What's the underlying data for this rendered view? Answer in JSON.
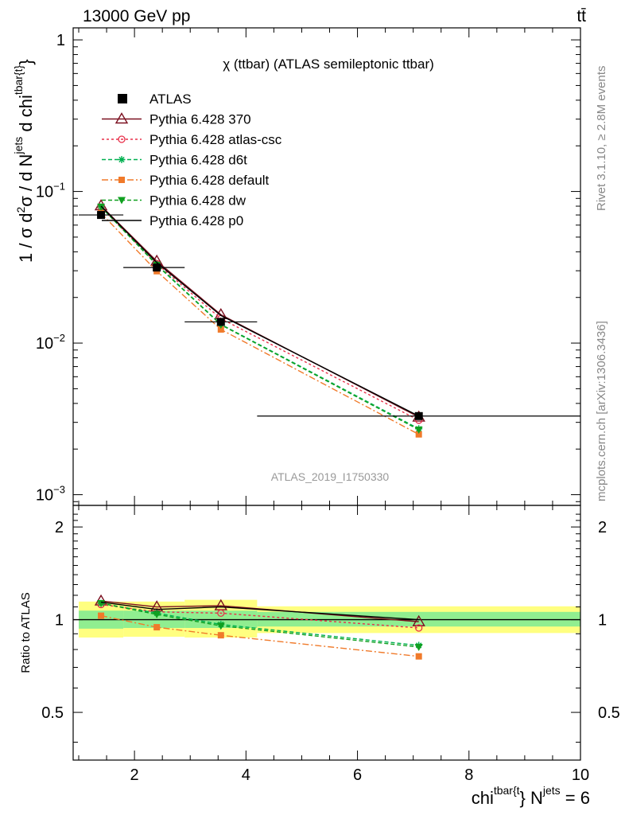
{
  "header": {
    "energy_label": "13000 GeV pp",
    "process_label": "tt̄"
  },
  "side_text": {
    "rivet": "Rivet 3.1.10, ≥ 2.8M events",
    "mcplots": "mcplots.cern.ch [arXiv:1306.3436]"
  },
  "chart_data": [
    {
      "type": "line",
      "panel": "main",
      "title": "χ (ttbar) (ATLAS semileptonic ttbar)",
      "ylabel": "1 / σ d²σ / d N^jets d chi^tbar{t}",
      "watermark": "ATLAS_2019_I1750330",
      "yscale": "log",
      "xlim": [
        0.9,
        10.0
      ],
      "ylim": [
        0.00085,
        1.2
      ],
      "ytick_labels": [
        {
          "value": 1,
          "base": "1",
          "exp": ""
        },
        {
          "value": 0.1,
          "base": "10",
          "exp": "−1"
        },
        {
          "value": 0.01,
          "base": "10",
          "exp": "−2"
        },
        {
          "value": 0.001,
          "base": "10",
          "exp": "−3"
        }
      ],
      "legend_position": "top-left",
      "series": [
        {
          "name": "ATLAS",
          "color": "#000000",
          "marker": "square",
          "dash": "none",
          "x": [
            1.4,
            2.4,
            3.55,
            7.1
          ],
          "y": [
            0.07,
            0.0315,
            0.0138,
            0.0033
          ],
          "xerr": [
            [
              1.0,
              1.8
            ],
            [
              1.8,
              2.9
            ],
            [
              2.9,
              4.2
            ],
            [
              4.2,
              10.0
            ]
          ]
        },
        {
          "name": "Pythia 6.428 370",
          "color": "#7b1020",
          "marker": "triangle-open",
          "dash": "none",
          "x": [
            1.4,
            2.4,
            3.55,
            7.1
          ],
          "y": [
            0.0805,
            0.0347,
            0.0154,
            0.00325
          ]
        },
        {
          "name": "Pythia 6.428 atlas-csc",
          "color": "#e8304a",
          "marker": "circle-open",
          "dash": "3,3",
          "x": [
            1.4,
            2.4,
            3.55,
            7.1
          ],
          "y": [
            0.0785,
            0.0334,
            0.0145,
            0.0031
          ]
        },
        {
          "name": "Pythia 6.428 d6t",
          "color": "#00b050",
          "marker": "star",
          "dash": "5,3",
          "x": [
            1.4,
            2.4,
            3.55,
            7.1
          ],
          "y": [
            0.079,
            0.033,
            0.0133,
            0.00272
          ]
        },
        {
          "name": "Pythia 6.428 default",
          "color": "#f07a2a",
          "marker": "square-filled",
          "dash": "8,3,2,3",
          "x": [
            1.4,
            2.4,
            3.55,
            7.1
          ],
          "y": [
            0.072,
            0.0298,
            0.0123,
            0.0025
          ]
        },
        {
          "name": "Pythia 6.428 dw",
          "color": "#10a020",
          "marker": "triangle-down-filled",
          "dash": "5,3",
          "x": [
            1.4,
            2.4,
            3.55,
            7.1
          ],
          "y": [
            0.0792,
            0.0327,
            0.0132,
            0.00268
          ]
        },
        {
          "name": "Pythia 6.428 p0",
          "color": "#000000",
          "marker": "none",
          "dash": "none",
          "x": [
            1.4,
            2.4,
            3.55,
            7.1
          ],
          "y": [
            0.08,
            0.034,
            0.0152,
            0.0033
          ]
        }
      ]
    },
    {
      "type": "line",
      "panel": "ratio",
      "ylabel": "Ratio to ATLAS",
      "xlabel": "chi^tbar{t} N^jets = 6",
      "xlim": [
        0.9,
        10.0
      ],
      "ylim": [
        0.35,
        2.35
      ],
      "xticks": [
        2,
        4,
        6,
        8,
        10
      ],
      "ytick_labels": [
        0.5,
        1,
        2
      ],
      "bands": {
        "yellow": [
          {
            "x0": 1.0,
            "x1": 1.8,
            "lo": 0.875,
            "hi": 1.145
          },
          {
            "x0": 1.8,
            "x1": 2.9,
            "lo": 0.88,
            "hi": 1.145
          },
          {
            "x0": 2.9,
            "x1": 4.2,
            "lo": 0.875,
            "hi": 1.16
          },
          {
            "x0": 4.2,
            "x1": 10.0,
            "lo": 0.905,
            "hi": 1.105
          }
        ],
        "green": [
          {
            "x0": 1.0,
            "x1": 1.8,
            "lo": 0.935,
            "hi": 1.07
          },
          {
            "x0": 1.8,
            "x1": 2.9,
            "lo": 0.94,
            "hi": 1.07
          },
          {
            "x0": 2.9,
            "x1": 4.2,
            "lo": 0.94,
            "hi": 1.07
          },
          {
            "x0": 4.2,
            "x1": 10.0,
            "lo": 0.95,
            "hi": 1.06
          }
        ]
      },
      "series": [
        {
          "name": "Pythia 6.428 370",
          "color": "#7b1020",
          "marker": "triangle-open",
          "dash": "none",
          "x": [
            1.4,
            2.4,
            3.55,
            7.1
          ],
          "y": [
            1.15,
            1.1,
            1.11,
            0.985
          ]
        },
        {
          "name": "Pythia 6.428 atlas-csc",
          "color": "#e8304a",
          "marker": "circle-open",
          "dash": "3,3",
          "x": [
            1.4,
            2.4,
            3.55,
            7.1
          ],
          "y": [
            1.12,
            1.06,
            1.05,
            0.94
          ]
        },
        {
          "name": "Pythia 6.428 d6t",
          "color": "#00b050",
          "marker": "star",
          "dash": "5,3",
          "x": [
            1.4,
            2.4,
            3.55,
            7.1
          ],
          "y": [
            1.13,
            1.05,
            0.965,
            0.825
          ]
        },
        {
          "name": "Pythia 6.428 default",
          "color": "#f07a2a",
          "marker": "square-filled",
          "dash": "8,3,2,3",
          "x": [
            1.4,
            2.4,
            3.55,
            7.1
          ],
          "y": [
            1.03,
            0.945,
            0.89,
            0.76
          ]
        },
        {
          "name": "Pythia 6.428 dw",
          "color": "#10a020",
          "marker": "triangle-down-filled",
          "dash": "5,3",
          "x": [
            1.4,
            2.4,
            3.55,
            7.1
          ],
          "y": [
            1.13,
            1.04,
            0.955,
            0.815
          ]
        },
        {
          "name": "Pythia 6.428 p0",
          "color": "#000000",
          "marker": "none",
          "dash": "none",
          "x": [
            1.4,
            2.4,
            3.55,
            7.1
          ],
          "y": [
            1.14,
            1.08,
            1.1,
            1.0
          ]
        }
      ]
    }
  ]
}
